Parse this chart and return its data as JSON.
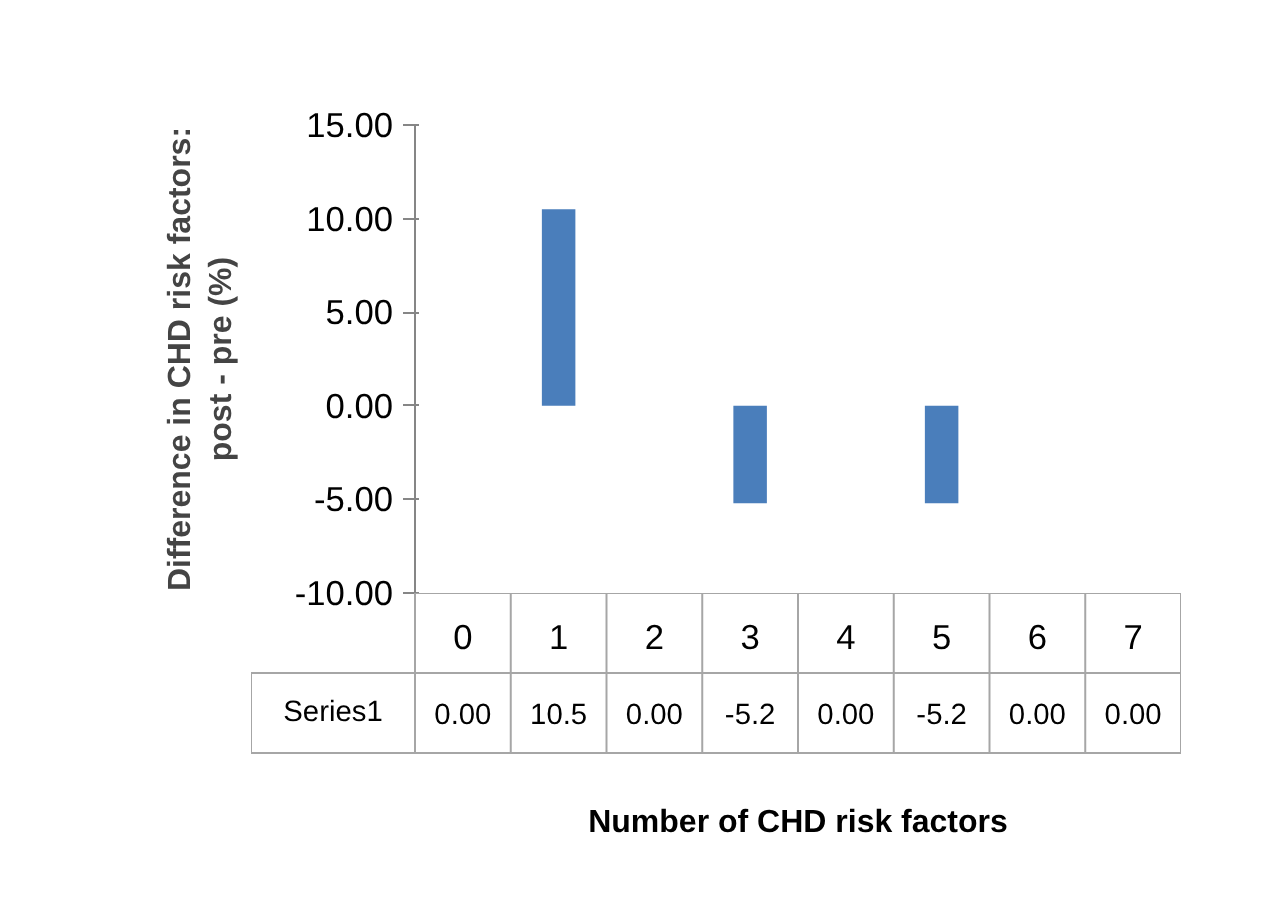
{
  "chart_data": {
    "type": "bar",
    "categories": [
      "0",
      "1",
      "2",
      "3",
      "4",
      "5",
      "6",
      "7"
    ],
    "series": [
      {
        "name": "Series1",
        "color": "#4a7ebb",
        "values": [
          0.0,
          10.5,
          0.0,
          -5.2,
          0.0,
          -5.2,
          0.0,
          0.0
        ],
        "value_labels": [
          "0.00",
          "10.5",
          "0.00",
          "-5.2",
          "0.00",
          "-5.2",
          "0.00",
          "0.00"
        ]
      }
    ],
    "ylim": [
      -10,
      15
    ],
    "yticks": [
      {
        "value": -10,
        "label": "-10.00"
      },
      {
        "value": -5,
        "label": "-5.00"
      },
      {
        "value": 0,
        "label": "0.00"
      },
      {
        "value": 5,
        "label": "5.00"
      },
      {
        "value": 10,
        "label": "10.00"
      },
      {
        "value": 15,
        "label": "15.00"
      }
    ],
    "xlabel": "Number of CHD risk factors",
    "ylabel": "Difference in CHD risk factors:\npost - pre (%)",
    "grid": false,
    "legend": false
  }
}
